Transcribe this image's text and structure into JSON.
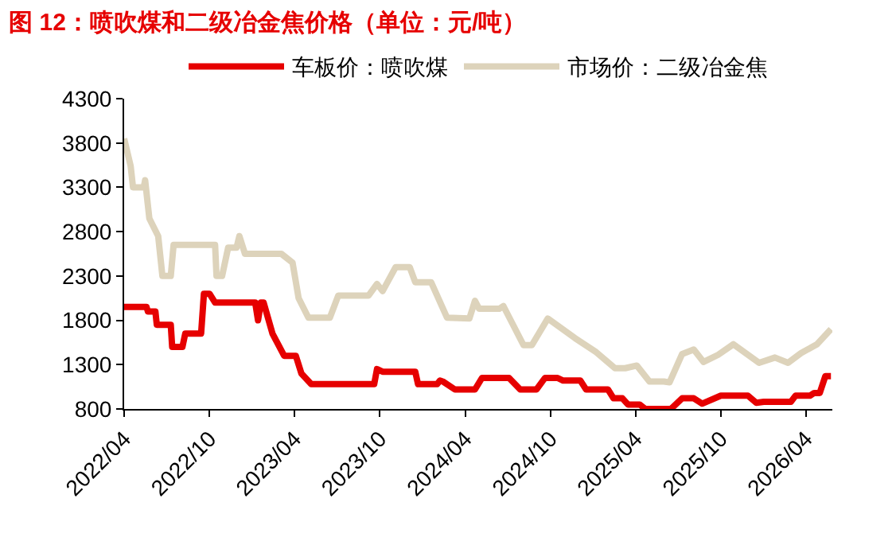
{
  "chart_data": {
    "type": "line",
    "title": "图 12：喷吹煤和二级冶金焦价格（单位：元/吨）",
    "xlim": [
      "2022-04-01",
      "2026-05-28"
    ],
    "xticks": [
      {
        "value": "2022-04-01",
        "label": "2022/04"
      },
      {
        "value": "2022-10-01",
        "label": "2022/10"
      },
      {
        "value": "2023-04-01",
        "label": "2023/04"
      },
      {
        "value": "2023-10-01",
        "label": "2023/10"
      },
      {
        "value": "2024-04-01",
        "label": "2024/04"
      },
      {
        "value": "2024-10-01",
        "label": "2024/10"
      },
      {
        "value": "2025-04-01",
        "label": "2025/04"
      },
      {
        "value": "2025-10-01",
        "label": "2025/10"
      },
      {
        "value": "2026-04-01",
        "label": "2026/04"
      }
    ],
    "ylim": [
      800,
      4300
    ],
    "yticks": [
      800,
      1300,
      1800,
      2300,
      2800,
      3300,
      3800,
      4300
    ],
    "legend": "top",
    "marker": "none",
    "line_style": "solid",
    "series": [
      {
        "name": "车板价：喷吹煤",
        "color": "#e60000",
        "x": [
          "2022-04-01",
          "2022-05-19",
          "2022-05-22",
          "2022-06-07",
          "2022-06-10",
          "2022-07-10",
          "2022-07-13",
          "2022-08-04",
          "2022-08-10",
          "2022-09-13",
          "2022-09-19",
          "2022-10-01",
          "2022-10-13",
          "2023-01-07",
          "2023-01-13",
          "2023-01-19",
          "2023-01-25",
          "2023-02-13",
          "2023-03-10",
          "2023-04-04",
          "2023-04-16",
          "2023-05-07",
          "2023-09-19",
          "2023-09-25",
          "2023-10-07",
          "2023-12-16",
          "2023-12-22",
          "2024-02-01",
          "2024-02-07",
          "2024-02-13",
          "2024-03-10",
          "2024-04-22",
          "2024-05-07",
          "2024-07-04",
          "2024-07-28",
          "2024-09-01",
          "2024-09-19",
          "2024-10-16",
          "2024-10-28",
          "2024-12-04",
          "2024-12-16",
          "2025-02-01",
          "2025-02-13",
          "2025-03-04",
          "2025-03-16",
          "2025-04-10",
          "2025-04-22",
          "2025-06-16",
          "2025-07-10",
          "2025-08-04",
          "2025-08-22",
          "2025-10-01",
          "2025-11-28",
          "2025-12-16",
          "2026-01-01",
          "2026-02-28",
          "2026-03-10",
          "2026-04-10",
          "2026-04-19",
          "2026-05-01",
          "2026-05-13",
          "2026-05-25"
        ],
        "values": [
          1950,
          1950,
          1900,
          1900,
          1750,
          1750,
          1500,
          1500,
          1650,
          1650,
          2100,
          2100,
          2000,
          2000,
          1800,
          2000,
          2000,
          1650,
          1400,
          1400,
          1200,
          1080,
          1080,
          1250,
          1220,
          1220,
          1080,
          1080,
          1120,
          1110,
          1020,
          1020,
          1150,
          1150,
          1020,
          1020,
          1150,
          1150,
          1120,
          1120,
          1020,
          1020,
          920,
          920,
          850,
          850,
          800,
          800,
          920,
          920,
          860,
          950,
          950,
          870,
          880,
          880,
          950,
          950,
          980,
          980,
          1170,
          1170
        ]
      },
      {
        "name": "市场价：二级冶金焦",
        "color": "#ddd3bb",
        "x": [
          "2022-04-01",
          "2022-04-15",
          "2022-04-20",
          "2022-05-13",
          "2022-05-16",
          "2022-05-25",
          "2022-06-13",
          "2022-06-22",
          "2022-07-10",
          "2022-07-16",
          "2022-10-13",
          "2022-10-16",
          "2022-10-28",
          "2022-11-10",
          "2022-11-28",
          "2022-12-04",
          "2022-12-16",
          "2023-03-04",
          "2023-03-28",
          "2023-04-10",
          "2023-05-01",
          "2023-06-16",
          "2023-07-04",
          "2023-09-07",
          "2023-09-25",
          "2023-10-07",
          "2023-11-04",
          "2023-12-04",
          "2023-12-16",
          "2024-01-19",
          "2024-02-22",
          "2024-04-10",
          "2024-04-22",
          "2024-05-01",
          "2024-06-13",
          "2024-06-22",
          "2024-08-04",
          "2024-08-22",
          "2024-09-25",
          "2024-11-22",
          "2025-01-07",
          "2025-02-16",
          "2025-03-10",
          "2025-04-04",
          "2025-05-01",
          "2025-06-01",
          "2025-06-13",
          "2025-07-10",
          "2025-08-04",
          "2025-08-25",
          "2025-09-25",
          "2025-10-28",
          "2025-12-22",
          "2026-01-25",
          "2026-02-22",
          "2026-03-22",
          "2026-04-25",
          "2026-05-25"
        ],
        "values": [
          3850,
          3540,
          3300,
          3300,
          3380,
          2950,
          2750,
          2300,
          2300,
          2650,
          2650,
          2300,
          2300,
          2620,
          2620,
          2750,
          2550,
          2550,
          2450,
          2050,
          1830,
          1830,
          2080,
          2080,
          2210,
          2130,
          2400,
          2400,
          2230,
          2230,
          1830,
          1820,
          2020,
          1930,
          1930,
          1960,
          1520,
          1520,
          1820,
          1600,
          1440,
          1260,
          1260,
          1290,
          1110,
          1110,
          1100,
          1420,
          1470,
          1330,
          1410,
          1530,
          1320,
          1380,
          1320,
          1430,
          1530,
          1700
        ]
      }
    ]
  }
}
